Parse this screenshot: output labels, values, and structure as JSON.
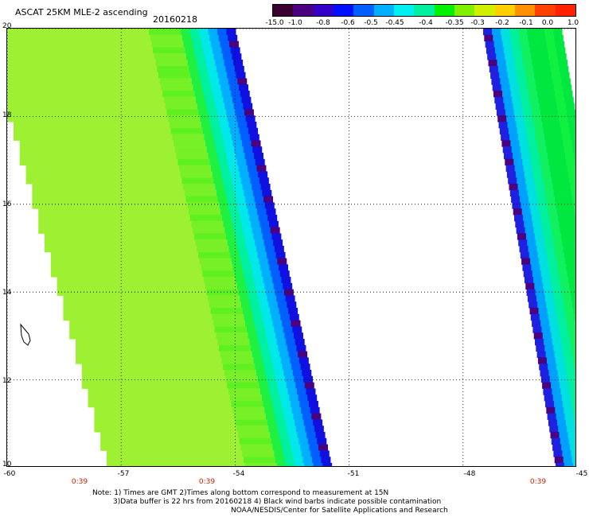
{
  "title": "ASCAT 25KM MLE-2 ascending",
  "date": "20160218",
  "colorbar": {
    "labels": [
      "-15.0",
      "-1.0",
      "-0.8",
      "-0.6",
      "-0.5",
      "-0.45",
      "-0.4",
      "-0.35",
      "-0.3",
      "-0.2",
      "-0.1",
      "0.0",
      "1.0"
    ],
    "colors": [
      "#3a0030",
      "#4a0080",
      "#3500c8",
      "#0010ff",
      "#0060ff",
      "#00b0ff",
      "#00f0f0",
      "#00f0a0",
      "#00f000",
      "#80f000",
      "#d0f000",
      "#ffd000",
      "#ff9000",
      "#ff4000",
      "#ff2000"
    ]
  },
  "map": {
    "lat_labels": [
      "20",
      "18",
      "16",
      "14",
      "12",
      "10"
    ],
    "lon_labels": [
      "-60",
      "-57",
      "-54",
      "-51",
      "-48",
      "-45"
    ],
    "time_labels": [
      "0:39",
      "0:39",
      "0:39"
    ],
    "lat_range": [
      10,
      20
    ],
    "lon_range": [
      -60,
      -45
    ]
  },
  "notes": {
    "line1": "Note: 1) Times are GMT 2)Times along bottom correspond to measurement at 15N",
    "line2": "3)Data buffer is 22 hrs from 20160218 4) Black wind barbs indicate possible contamination",
    "line3": "NOAA/NESDIS/Center for Satellite Applications and Research"
  }
}
